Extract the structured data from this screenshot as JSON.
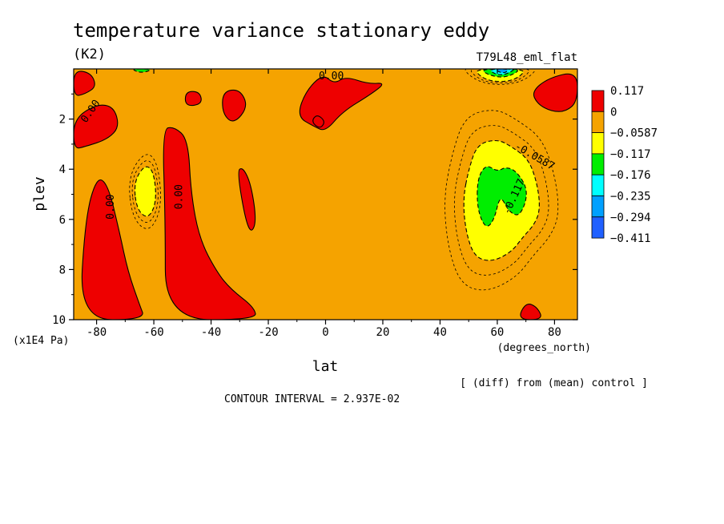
{
  "chart_data": {
    "type": "contour",
    "title": "temperature variance stationary eddy",
    "units": "(K2)",
    "run_label": "T79L48_eml_flat",
    "xlabel": "lat",
    "x_units": "(degrees_north)",
    "ylabel": "plev",
    "y_units": "(x1E4 Pa)",
    "xlim": [
      -88,
      88
    ],
    "ylim": [
      10,
      0
    ],
    "x_ticks": [
      -80,
      -60,
      -40,
      -20,
      0,
      20,
      40,
      60,
      80
    ],
    "y_ticks": [
      2,
      4,
      6,
      8,
      10
    ],
    "legend": {
      "labels": [
        "0.117",
        "0",
        "−0.0587",
        "−0.117",
        "−0.176",
        "−0.235",
        "−0.294",
        "−0.411"
      ],
      "colors": [
        "#ee0000",
        "#f5a300",
        "#ffff00",
        "#00ee00",
        "#00ffff",
        "#00a0ff",
        "#2060ff"
      ]
    },
    "background_color": "#f5a300",
    "regions": [
      {
        "level": "positive",
        "color": "#ee0000",
        "points": [
          [
            -88,
            2.0
          ],
          [
            -80,
            1.4
          ],
          [
            -74,
            1.5
          ],
          [
            -72,
            2.3
          ],
          [
            -76,
            2.8
          ],
          [
            -84,
            3.1
          ],
          [
            -88,
            3.2
          ]
        ]
      },
      {
        "level": "positive",
        "color": "#ee0000",
        "points": [
          [
            -88,
            0.05
          ],
          [
            -82,
            0.15
          ],
          [
            -80,
            0.7
          ],
          [
            -84,
            1.0
          ],
          [
            -88,
            1.1
          ]
        ]
      },
      {
        "level": "positive",
        "color": "#ee0000",
        "points": [
          [
            -49,
            0.9
          ],
          [
            -44,
            0.9
          ],
          [
            -43,
            1.4
          ],
          [
            -49,
            1.5
          ]
        ]
      },
      {
        "level": "positive",
        "color": "#ee0000",
        "points": [
          [
            -36,
            0.9
          ],
          [
            -30,
            0.8
          ],
          [
            -27,
            1.5
          ],
          [
            -32,
            2.2
          ],
          [
            -36,
            1.8
          ]
        ]
      },
      {
        "level": "positive",
        "color": "#ee0000",
        "points": [
          [
            -10,
            1.9
          ],
          [
            -7,
            0.9
          ],
          [
            -1,
            0.2
          ],
          [
            3,
            0.6
          ],
          [
            7,
            0.3
          ],
          [
            15,
            0.6
          ],
          [
            21,
            0.55
          ],
          [
            16,
            1.0
          ],
          [
            6,
            1.7
          ],
          [
            0,
            2.5
          ],
          [
            -4,
            2.3
          ]
        ]
      },
      {
        "level": "positive",
        "color": "#ee0000",
        "points": [
          [
            -86,
            10
          ],
          [
            -84,
            6.0
          ],
          [
            -80,
            4.3
          ],
          [
            -76,
            4.6
          ],
          [
            -72,
            6.5
          ],
          [
            -69,
            8.1
          ],
          [
            -65,
            9.4
          ],
          [
            -63,
            10
          ]
        ]
      },
      {
        "level": "positive",
        "color": "#ee0000",
        "points": [
          [
            -57,
            2.4
          ],
          [
            -53,
            2.3
          ],
          [
            -48,
            2.8
          ],
          [
            -47,
            5.0
          ],
          [
            -44,
            6.8
          ],
          [
            -38,
            8.1
          ],
          [
            -33,
            8.8
          ],
          [
            -25,
            9.5
          ],
          [
            -24,
            10
          ],
          [
            -56,
            10
          ],
          [
            -56,
            6.0
          ]
        ]
      },
      {
        "level": "positive",
        "color": "#ee0000",
        "points": [
          [
            -31,
            4.1
          ],
          [
            -29,
            3.9
          ],
          [
            -26,
            4.6
          ],
          [
            -24,
            6.2
          ],
          [
            -27,
            6.6
          ]
        ]
      },
      {
        "level": "positive",
        "color": "#ee0000",
        "points": [
          [
            -5,
            2.1
          ],
          [
            -3,
            1.8
          ],
          [
            0,
            2.1
          ],
          [
            -2,
            2.4
          ]
        ]
      },
      {
        "level": "positive",
        "color": "#ee0000",
        "points": [
          [
            72,
            0.9
          ],
          [
            78,
            0.35
          ],
          [
            88,
            0.1
          ],
          [
            88,
            1.3
          ],
          [
            84,
            1.7
          ],
          [
            79,
            1.7
          ],
          [
            74,
            1.4
          ]
        ]
      },
      {
        "level": "positive",
        "color": "#ee0000",
        "points": [
          [
            67,
            10
          ],
          [
            70,
            9.3
          ],
          [
            74,
            9.5
          ],
          [
            76,
            10
          ]
        ]
      },
      {
        "level": "positive",
        "color": "#ee0000",
        "points": [
          [
            56,
            0.2
          ],
          [
            58,
            0.0
          ],
          [
            62,
            0.1
          ],
          [
            59,
            0.4
          ]
        ]
      },
      {
        "level": "negative",
        "color": "#ffff00",
        "points": [
          [
            50,
            4.0
          ],
          [
            53,
            3.0
          ],
          [
            60,
            2.8
          ],
          [
            65,
            3.1
          ],
          [
            71,
            3.6
          ],
          [
            74,
            4.6
          ],
          [
            75,
            5.6
          ],
          [
            73,
            6.2
          ],
          [
            69,
            6.7
          ],
          [
            65,
            7.3
          ],
          [
            58,
            7.7
          ],
          [
            52,
            7.5
          ],
          [
            49,
            6.5
          ],
          [
            48,
            5.2
          ]
        ]
      },
      {
        "level": "negative",
        "color": "#ffff00",
        "points": [
          [
            -67,
            4.5
          ],
          [
            -63,
            3.8
          ],
          [
            -60,
            4.1
          ],
          [
            -59,
            5.3
          ],
          [
            -62,
            6.0
          ],
          [
            -66,
            5.6
          ]
        ]
      },
      {
        "level": "negative",
        "color": "#00ee00",
        "points": [
          [
            53,
            4.4
          ],
          [
            56,
            3.8
          ],
          [
            60,
            4.1
          ],
          [
            63,
            3.9
          ],
          [
            67,
            4.1
          ],
          [
            71,
            4.9
          ],
          [
            68,
            5.9
          ],
          [
            64,
            5.7
          ],
          [
            61,
            5.0
          ],
          [
            59,
            6.0
          ],
          [
            56,
            6.4
          ],
          [
            53,
            5.6
          ]
        ]
      },
      {
        "level": "negative",
        "color": "#ffff00",
        "points": [
          [
            52,
            0.0
          ],
          [
            54,
            0.3
          ],
          [
            58,
            0.5
          ],
          [
            64,
            0.5
          ],
          [
            68,
            0.3
          ],
          [
            70,
            0.0
          ]
        ]
      },
      {
        "level": "negative",
        "color": "#00ee00",
        "points": [
          [
            54,
            0.0
          ],
          [
            57,
            0.25
          ],
          [
            62,
            0.35
          ],
          [
            66,
            0.2
          ],
          [
            68,
            0.0
          ]
        ]
      },
      {
        "level": "negative",
        "color": "#00ffff",
        "points": [
          [
            57,
            0.0
          ],
          [
            59,
            0.2
          ],
          [
            62,
            0.25
          ],
          [
            65,
            0.1
          ],
          [
            66,
            0.0
          ]
        ]
      },
      {
        "level": "negative",
        "color": "#00a0ff",
        "points": [
          [
            59,
            0.0
          ],
          [
            61,
            0.15
          ],
          [
            63,
            0.15
          ],
          [
            64,
            0.0
          ]
        ]
      },
      {
        "level": "negative",
        "color": "#00ee00",
        "points": [
          [
            -68,
            0.0
          ],
          [
            -65,
            0.15
          ],
          [
            -62,
            0.1
          ],
          [
            -61,
            0.0
          ]
        ]
      }
    ],
    "contour_labels": [
      {
        "text": "0.00",
        "lat": -82,
        "plev": 1.7,
        "angle": -55
      },
      {
        "text": "0.00",
        "lat": 2,
        "plev": 0.3,
        "angle": 0
      },
      {
        "text": "0.00",
        "lat": -75,
        "plev": 5.5,
        "angle": -90
      },
      {
        "text": "0.00",
        "lat": -51,
        "plev": 5.1,
        "angle": -90
      },
      {
        "text": "-0.0587",
        "lat": 73,
        "plev": 3.5,
        "angle": 30
      },
      {
        "text": "-0.117",
        "lat": 66,
        "plev": 5.1,
        "angle": -65
      }
    ],
    "diff_note": "[ (diff) from (mean) control ]",
    "contour_interval_label": "CONTOUR INTERVAL = 2.937E-02"
  }
}
